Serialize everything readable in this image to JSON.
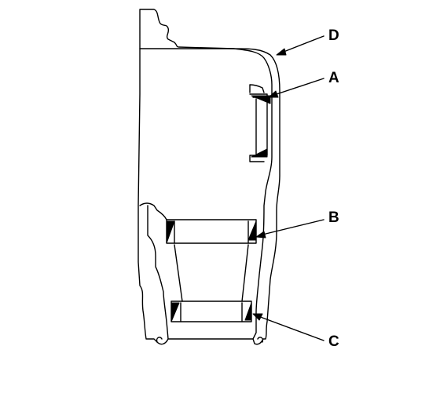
{
  "callouts": {
    "d": "D",
    "a": "A",
    "b": "B",
    "c": "C"
  },
  "colors": {
    "line": "#000000",
    "background": "#ffffff"
  }
}
